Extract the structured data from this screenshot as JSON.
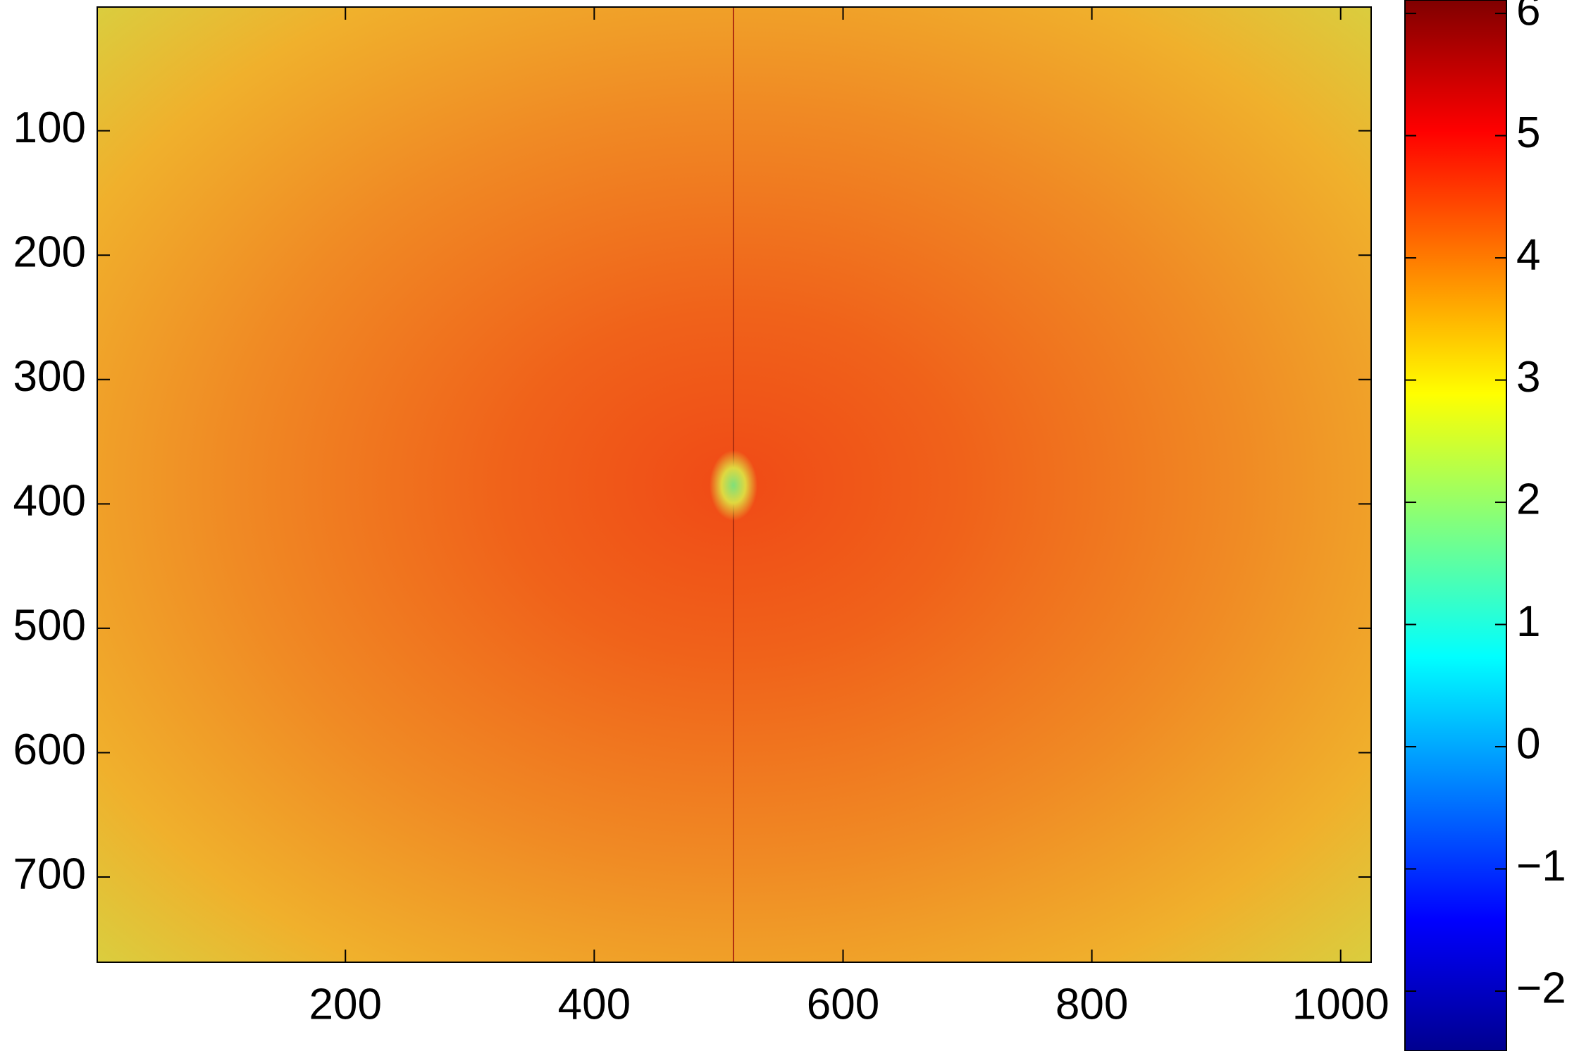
{
  "chart_data": {
    "type": "heatmap",
    "colormap": "jet",
    "xlim": [
      0.5,
      1024.5
    ],
    "ylim": [
      0.5,
      768.5
    ],
    "y_reversed": true,
    "xticks": [
      200,
      400,
      600,
      800,
      1000
    ],
    "yticks": [
      100,
      200,
      300,
      400,
      500,
      600,
      700
    ],
    "clim": [
      -2.49,
      6.11
    ],
    "cticks": [
      {
        "value": -2,
        "label": "−2"
      },
      {
        "value": -1,
        "label": "−1"
      },
      0,
      1,
      2,
      3,
      4,
      5,
      6
    ]
  }
}
